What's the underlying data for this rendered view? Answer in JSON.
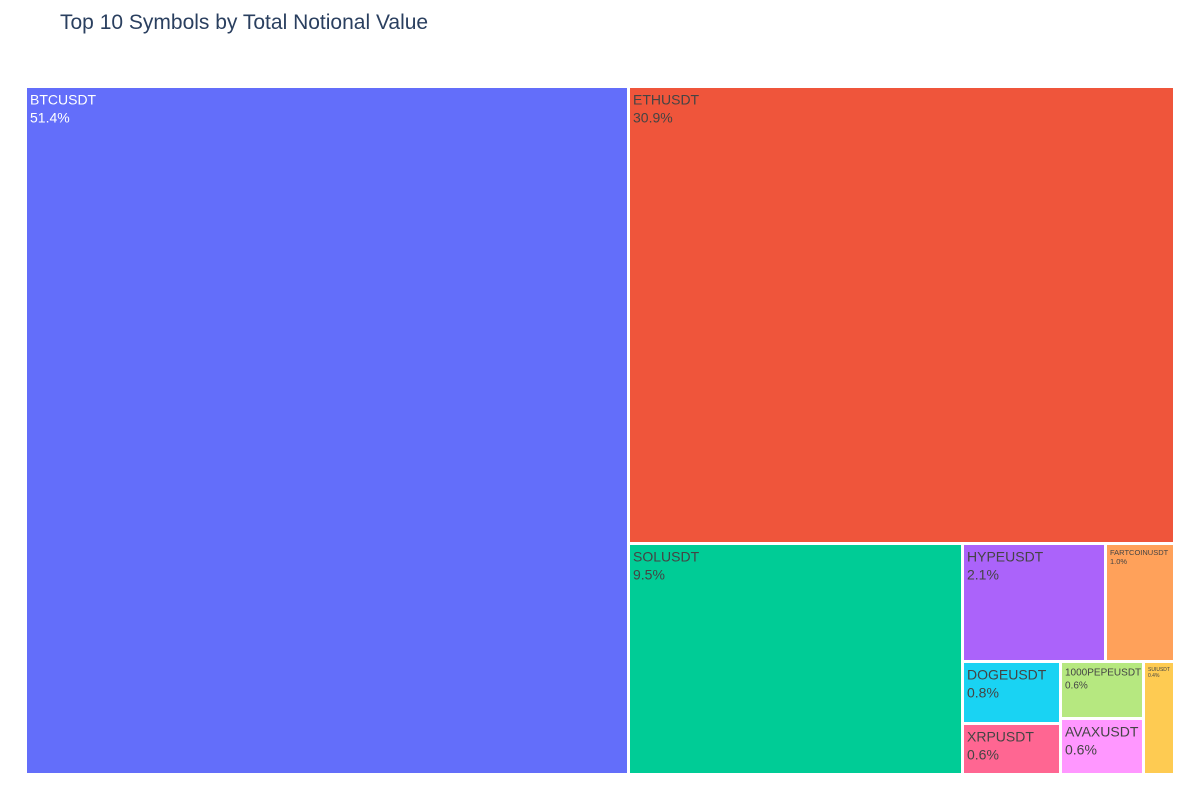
{
  "chart_data": {
    "type": "treemap",
    "title": "Top 10 Symbols by Total Notional Value",
    "items": [
      {
        "label": "BTCUSDT",
        "percent": 51.4,
        "percent_label": "51.4%",
        "color": "#636efa",
        "text_color": "#ffffff"
      },
      {
        "label": "ETHUSDT",
        "percent": 30.9,
        "percent_label": "30.9%",
        "color": "#ef553b",
        "text_color": "#444444"
      },
      {
        "label": "SOLUSDT",
        "percent": 9.5,
        "percent_label": "9.5%",
        "color": "#00cc96",
        "text_color": "#444444"
      },
      {
        "label": "HYPEUSDT",
        "percent": 2.1,
        "percent_label": "2.1%",
        "color": "#ab63fa",
        "text_color": "#444444"
      },
      {
        "label": "FARTCOINUSDT",
        "percent": 1.0,
        "percent_label": "1.0%",
        "color": "#ffa15a",
        "text_color": "#444444"
      },
      {
        "label": "DOGEUSDT",
        "percent": 0.8,
        "percent_label": "0.8%",
        "color": "#19d3f3",
        "text_color": "#444444"
      },
      {
        "label": "1000PEPEUSDT",
        "percent": 0.6,
        "percent_label": "0.6%",
        "color": "#b6e880",
        "text_color": "#444444"
      },
      {
        "label": "XRPUSDT",
        "percent": 0.6,
        "percent_label": "0.6%",
        "color": "#ff6692",
        "text_color": "#444444"
      },
      {
        "label": "AVAXUSDT",
        "percent": 0.6,
        "percent_label": "0.6%",
        "color": "#ff97ff",
        "text_color": "#444444"
      },
      {
        "label": "SUIUSDT",
        "percent": 0.4,
        "percent_label": "0.4%",
        "color": "#fecb52",
        "text_color": "#444444"
      }
    ]
  }
}
